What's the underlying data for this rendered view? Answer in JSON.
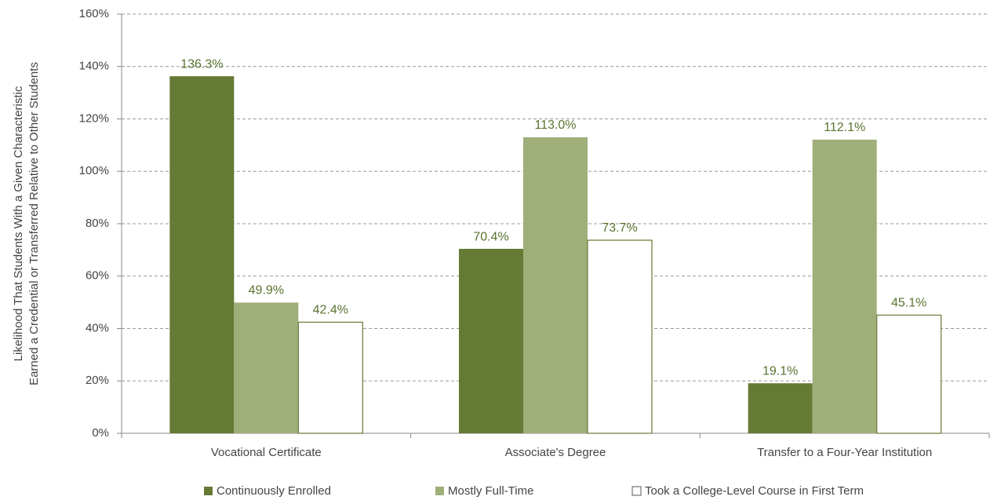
{
  "chart_data": {
    "type": "bar",
    "ylabel": [
      "Likelihood That Students With a Given Characteristic",
      "Earned a Credential or Transferred Relative to Other Students"
    ],
    "categories": [
      "Vocational Certificate",
      "Associate's Degree",
      "Transfer to a Four-Year Institution"
    ],
    "series": [
      {
        "name": "Continuously Enrolled",
        "color": "#647a35",
        "values": [
          136.3,
          70.4,
          19.1
        ],
        "value_labels": [
          "136.3%",
          "70.4%",
          "19.1%"
        ]
      },
      {
        "name": "Mostly Full-Time",
        "color": "#a0ae7a",
        "values": [
          49.9,
          113.0,
          112.1
        ],
        "value_labels": [
          "49.9%",
          "113.0%",
          "112.1%"
        ]
      },
      {
        "name": "Took a College-Level Course in First Term",
        "color": "#ffffff",
        "values": [
          42.4,
          73.7,
          45.1
        ],
        "value_labels": [
          "42.4%",
          "73.7%",
          "45.1%"
        ]
      }
    ],
    "ylim": [
      0,
      160
    ],
    "yticks": [
      {
        "value": 0,
        "label": "0%"
      },
      {
        "value": 20,
        "label": "20%"
      },
      {
        "value": 40,
        "label": "40%"
      },
      {
        "value": 60,
        "label": "60%"
      },
      {
        "value": 80,
        "label": "80%"
      },
      {
        "value": 100,
        "label": "100%"
      },
      {
        "value": 120,
        "label": "120%"
      },
      {
        "value": 140,
        "label": "140%"
      },
      {
        "value": 160,
        "label": "160%"
      }
    ],
    "grid": true,
    "legend": "bottom"
  }
}
